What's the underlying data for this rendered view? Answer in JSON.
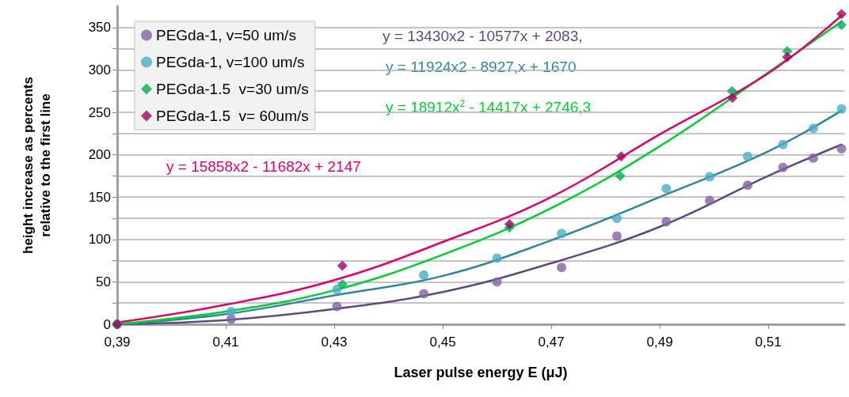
{
  "chart_data": {
    "type": "scatter",
    "xlabel": "Laser pulse energy E (μJ)",
    "ylabel": "height increase as percents\nrelative to the first line",
    "xlim": [
      0.39,
      0.524
    ],
    "ylim": [
      0,
      375
    ],
    "xticks": [
      {
        "value": 0.39,
        "label": "0,39"
      },
      {
        "value": 0.41,
        "label": "0,41"
      },
      {
        "value": 0.43,
        "label": "0,43"
      },
      {
        "value": 0.45,
        "label": "0,45"
      },
      {
        "value": 0.47,
        "label": "0,47"
      },
      {
        "value": 0.49,
        "label": "0,49"
      },
      {
        "value": 0.51,
        "label": "0,51"
      }
    ],
    "yticks": [
      0,
      {
        "value": 25,
        "label": null
      },
      50,
      {
        "value": 75,
        "label": null
      },
      100,
      {
        "value": 125,
        "label": null
      },
      150,
      {
        "value": 175,
        "label": null
      },
      200,
      {
        "value": 225,
        "label": null
      },
      250,
      {
        "value": 275,
        "label": null
      },
      300,
      {
        "value": 325,
        "label": null
      },
      350
    ],
    "grid": "y",
    "legend": "top left",
    "series": [
      {
        "name": "PEGda-1, v=50 um/s",
        "color": "#8064a2",
        "marker": "circle",
        "x": [
          0.39,
          0.411,
          0.4305,
          0.4465,
          0.46,
          0.4719,
          0.4821,
          0.4912,
          0.4992,
          0.5062,
          0.5127,
          0.5183,
          0.5235
        ],
        "values": [
          0,
          6,
          21,
          36,
          50,
          67,
          104,
          121,
          146,
          164,
          185,
          196,
          207
        ]
      },
      {
        "name": "PEGda-1, v=100 um/s",
        "color": "#4bacc6",
        "marker": "circle",
        "x": [
          0.39,
          0.411,
          0.4305,
          0.4465,
          0.46,
          0.4719,
          0.4821,
          0.4912,
          0.4992,
          0.5062,
          0.5127,
          0.5183,
          0.5235
        ],
        "values": [
          0,
          15,
          41,
          58,
          78,
          107,
          125,
          160,
          174,
          198,
          212,
          231,
          254
        ]
      },
      {
        "name": "PEGda-1.5  v=30 um/s",
        "color": "#00b050",
        "marker": "diamond",
        "x": [
          0.39,
          0.4315,
          0.4623,
          0.4827,
          0.5033,
          0.5135,
          0.5235
        ],
        "values": [
          0,
          47,
          114,
          175,
          275,
          322,
          353
        ]
      },
      {
        "name": "PEGda-1.5  v= 60um/s",
        "color": "#a50064",
        "marker": "diamond",
        "x": [
          0.39,
          0.4315,
          0.4623,
          0.4829,
          0.5034,
          0.5135,
          0.5235
        ],
        "values": [
          0,
          69,
          118,
          198,
          267,
          315,
          366
        ]
      },
      {
        "type": "line",
        "color": "#604a7b",
        "marker": "none",
        "x": [
          0.39,
          0.41,
          0.43,
          0.45,
          0.47,
          0.49,
          0.51,
          0.5235
        ],
        "values": [
          0,
          5,
          18,
          38,
          72,
          115,
          175,
          212
        ]
      },
      {
        "type": "line",
        "color": "#31859c",
        "marker": "none",
        "x": [
          0.39,
          0.41,
          0.43,
          0.45,
          0.47,
          0.49,
          0.51,
          0.5235
        ],
        "values": [
          0,
          12,
          34,
          57,
          99,
          150,
          204,
          252
        ]
      },
      {
        "type": "line",
        "color": "#00cc33",
        "marker": "none",
        "x": [
          0.39,
          0.41,
          0.43,
          0.45,
          0.47,
          0.49,
          0.51,
          0.5235
        ],
        "values": [
          0,
          15,
          40,
          82,
          137,
          210,
          297,
          357
        ]
      },
      {
        "type": "line",
        "color": "#e0006a",
        "marker": "none",
        "x": [
          0.39,
          0.41,
          0.43,
          0.45,
          0.47,
          0.49,
          0.51,
          0.5235
        ],
        "values": [
          2,
          23,
          52,
          97,
          150,
          224,
          296,
          364
        ]
      }
    ],
    "annotations": [
      "y = 13430x2 - 10577x + 2083,",
      "y = 11924x2 - 8927,x + 1670",
      "y = 18912x$^{2}$ - 14417x + 2746,3",
      "y = 15858x2 - 11682x + 2147"
    ]
  }
}
